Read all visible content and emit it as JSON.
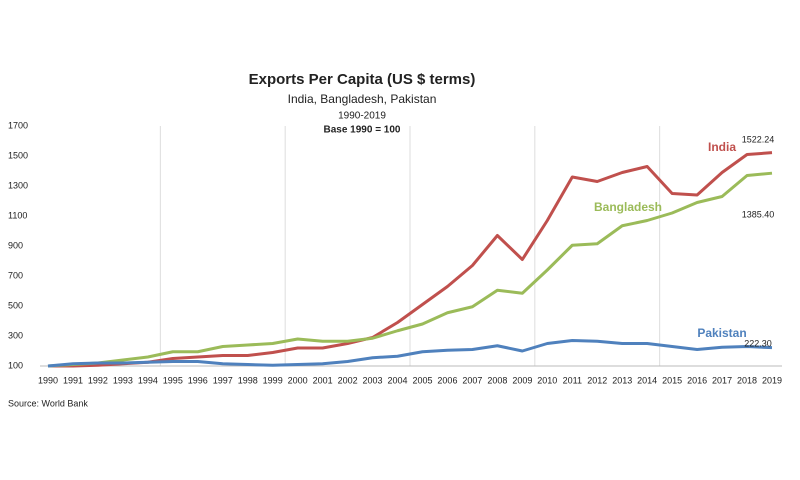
{
  "chart_data": {
    "type": "line",
    "title": "Exports Per Capita (US $ terms)",
    "subtitle": "India, Bangladesh, Pakistan",
    "period": "1990-2019",
    "note": "Base 1990 = 100",
    "source": "Source: World Bank",
    "categories": [
      "1990",
      "1991",
      "1992",
      "1993",
      "1994",
      "1995",
      "1996",
      "1997",
      "1998",
      "1999",
      "2000",
      "2001",
      "2002",
      "2003",
      "2004",
      "2005",
      "2006",
      "2007",
      "2008",
      "2009",
      "2010",
      "2011",
      "2012",
      "2013",
      "2014",
      "2015",
      "2016",
      "2017",
      "2018",
      "2019"
    ],
    "series": [
      {
        "name": "India",
        "color": "#c0504d",
        "values": [
          100,
          100,
          105,
          115,
          125,
          150,
          160,
          170,
          170,
          190,
          220,
          220,
          250,
          290,
          390,
          510,
          630,
          770,
          970,
          810,
          1070,
          1360,
          1330,
          1390,
          1430,
          1250,
          1240,
          1390,
          1510,
          1522.24
        ],
        "value_labels": [
          null,
          null,
          null,
          null,
          null,
          null,
          null,
          null,
          null,
          null,
          null,
          null,
          null,
          null,
          null,
          null,
          null,
          null,
          null,
          null,
          null,
          null,
          null,
          null,
          null,
          null,
          null,
          null,
          null,
          "1522.24"
        ]
      },
      {
        "name": "Bangladesh",
        "color": "#9bbb59",
        "values": [
          100,
          110,
          120,
          140,
          160,
          195,
          195,
          230,
          240,
          250,
          280,
          265,
          265,
          285,
          335,
          380,
          455,
          495,
          605,
          585,
          740,
          905,
          915,
          1035,
          1070,
          1120,
          1190,
          1230,
          1370,
          1385.4
        ],
        "value_labels": [
          null,
          null,
          null,
          null,
          null,
          null,
          null,
          null,
          null,
          null,
          null,
          null,
          null,
          null,
          null,
          null,
          null,
          null,
          null,
          null,
          null,
          null,
          null,
          null,
          null,
          null,
          null,
          null,
          null,
          "1385.40"
        ]
      },
      {
        "name": "Pakistan",
        "color": "#4f81bd",
        "values": [
          100,
          115,
          120,
          120,
          125,
          130,
          130,
          115,
          110,
          105,
          110,
          115,
          130,
          155,
          165,
          195,
          205,
          210,
          235,
          200,
          250,
          270,
          265,
          250,
          250,
          230,
          210,
          225,
          230,
          222.3
        ],
        "value_labels": [
          null,
          null,
          null,
          null,
          null,
          null,
          null,
          null,
          null,
          null,
          null,
          null,
          null,
          null,
          null,
          null,
          null,
          null,
          null,
          null,
          null,
          null,
          null,
          null,
          null,
          null,
          null,
          null,
          null,
          "222.30"
        ]
      }
    ],
    "ylim": [
      100,
      1700
    ],
    "yticks": [
      100,
      300,
      500,
      700,
      900,
      1100,
      1300,
      1500,
      1700
    ]
  }
}
